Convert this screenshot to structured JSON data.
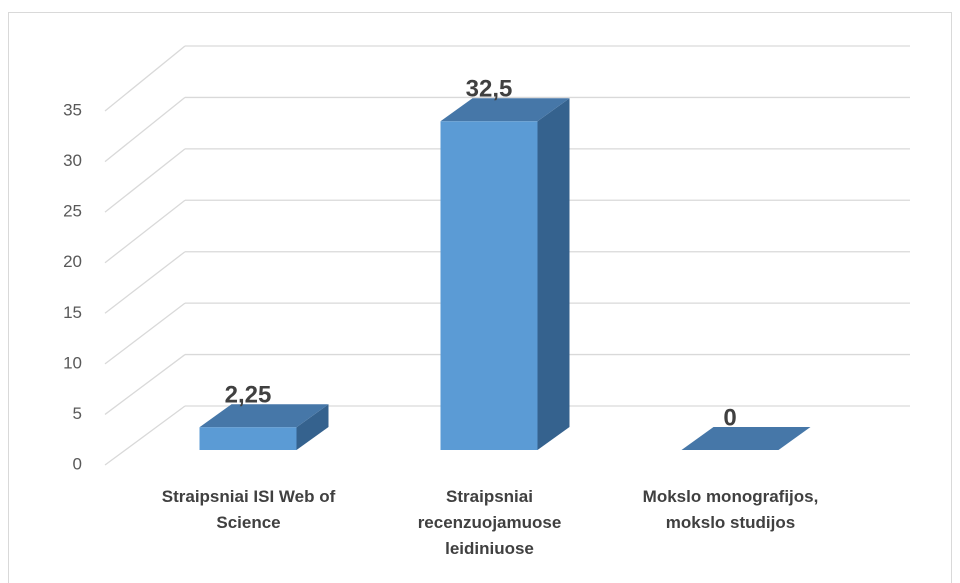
{
  "chart_data": {
    "type": "bar3d",
    "categories": [
      "Straipsniai ISI Web of Science",
      "Straipsniai recenzuojamuose leidiniuose",
      "Mokslo monografijos, mokslo studijos"
    ],
    "values": [
      2.25,
      32.5,
      0
    ],
    "value_labels": [
      "2,25",
      "32,5",
      "0"
    ],
    "color": "#5b9bd5",
    "ylim": [
      0,
      35
    ],
    "yticks": [
      0,
      5,
      10,
      15,
      20,
      25,
      30,
      35
    ],
    "grid": true
  }
}
